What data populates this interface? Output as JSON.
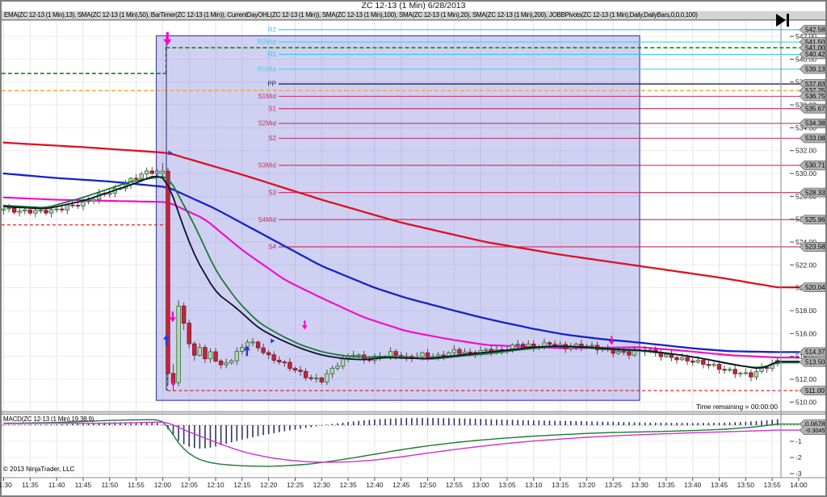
{
  "window": {
    "title": "ZC 12-13 (1 Min)  6/28/2013"
  },
  "toolbar": {
    "indicators_text": "EMA(ZC 12-13 (1 Min),13), SMA(ZC 12-13 (1 Min),50), BarTimer(ZC 12-13 (1 Min)), CurrentDayOHL(ZC 12-13 (1 Min)), SMA(ZC 12-13 (1 Min),100), SMA(ZC 12-13 (1 Min),20), SMA(ZC 12-13 (1 Min),200), JOBBPivots(ZC 12-13 (1 Min),Daily,DailyBars,0,0,0,100)"
  },
  "status": {
    "time_remaining": "Time remaining = 00:00:00",
    "copyright": "© 2013 NinjaTrader, LLC"
  },
  "icons": {
    "top_right": "go-to-end-icon"
  },
  "chart_data": {
    "type": "candlestick",
    "symbol": "ZC 12-13",
    "interval": "1 Min",
    "date": "6/28/2013",
    "grid": true,
    "x_axis": {
      "labels": [
        "11:30",
        "11:35",
        "11:40",
        "11:45",
        "11:50",
        "11:55",
        "12:00",
        "12:05",
        "12:10",
        "12:15",
        "12:20",
        "12:25",
        "12:30",
        "12:35",
        "12:40",
        "12:45",
        "12:50",
        "12:55",
        "13:00",
        "13:05",
        "13:10",
        "13:15",
        "13:20",
        "13:25",
        "13:30",
        "13:35",
        "13:40",
        "13:45",
        "13:50",
        "13:55",
        "14:00"
      ],
      "step_minutes": 5
    },
    "y_axis": {
      "ticks": [
        542,
        540,
        538,
        536,
        534,
        532,
        530,
        528,
        526,
        524,
        522,
        520,
        518,
        516,
        514,
        512,
        510
      ],
      "ylim": [
        509.3,
        543.4
      ]
    },
    "pivots": [
      {
        "name": "R2",
        "value": 542.58,
        "color": "#27c6e8"
      },
      {
        "name": "R2Mid",
        "value": 541.5,
        "color": "#3fd2ee"
      },
      {
        "name": "R1",
        "value": 540.42,
        "color": "#27c6e8"
      },
      {
        "name": "R1Mid",
        "value": 539.13,
        "color": "#3fd2ee"
      },
      {
        "name": "PP",
        "value": 537.83,
        "color": "#23234d"
      },
      {
        "name": "S1Mid",
        "value": 536.75,
        "color": "#cc3060"
      },
      {
        "name": "S1",
        "value": 535.67,
        "color": "#c8295c"
      },
      {
        "name": "S2Mid",
        "value": 534.38,
        "color": "#cc3060"
      },
      {
        "name": "S2",
        "value": 533.08,
        "color": "#c8295c"
      },
      {
        "name": "S3Mid",
        "value": 530.71,
        "color": "#cc3060"
      },
      {
        "name": "S3",
        "value": 528.33,
        "color": "#c8295c"
      },
      {
        "name": "S4Mid",
        "value": 525.96,
        "color": "#cc3060"
      },
      {
        "name": "S4",
        "value": 523.58,
        "color": "#c8295c"
      }
    ],
    "day_lines": [
      {
        "name": "prev-session-high",
        "price": 538.75,
        "t1": -0.4,
        "t2": 30.6,
        "color": "#0a8a0a",
        "width": 1.6,
        "dash": "5,3"
      },
      {
        "name": "current-high",
        "price": 541.0,
        "t1": 30.6,
        "t2": 150.2,
        "color": "#0a8a0a",
        "width": 1.6,
        "dash": "5,3"
      },
      {
        "name": "current-open",
        "price": 537.25,
        "t1": -0.4,
        "t2": 150.2,
        "color": "#efa235",
        "width": 1.4,
        "dash": "5,3"
      },
      {
        "name": "prev-session-low",
        "price": 525.5,
        "t1": -0.4,
        "t2": 30.9,
        "color": "#dd2626",
        "width": 1.3,
        "dash": "4,3"
      },
      {
        "name": "current-low",
        "price": 511.0,
        "t1": 30.9,
        "t2": 150.2,
        "color": "#dd2626",
        "width": 1.3,
        "dash": "4,3"
      }
    ],
    "day_line_connectors": [
      {
        "t": 30.6,
        "p1": 541.0,
        "p2": 538.75,
        "color": "#0a8a0a",
        "dash": "4,3"
      },
      {
        "t": 30.9,
        "p1": 525.5,
        "p2": 511.0,
        "color": "#dd2626",
        "dash": "4,3"
      },
      {
        "t": 30.7,
        "p1": 542.05,
        "p2": 511.0,
        "color": "#3a3a6e",
        "dash": ""
      }
    ],
    "region": {
      "t1": 28.8,
      "t2": 120,
      "p_top": 542.05,
      "p_bottom": 510.15,
      "fill": "rgba(132,132,222,0.38)",
      "stroke": "#4646ad"
    },
    "series": [
      {
        "name": "SMA200",
        "color": "#dd1122",
        "width": 2.3,
        "anchors": [
          [
            0,
            532.7
          ],
          [
            15,
            532.3
          ],
          [
            31,
            531.8
          ],
          [
            45,
            529.9
          ],
          [
            60,
            527.7
          ],
          [
            75,
            525.7
          ],
          [
            91,
            524.0
          ],
          [
            105,
            522.9
          ],
          [
            120,
            521.9
          ],
          [
            135,
            520.9
          ],
          [
            146,
            520.04
          ]
        ]
      },
      {
        "name": "SMA100",
        "color": "#1423cc",
        "width": 2.3,
        "anchors": [
          [
            0,
            530.0
          ],
          [
            10,
            529.6
          ],
          [
            20,
            529.3
          ],
          [
            31,
            528.8
          ],
          [
            40,
            526.9
          ],
          [
            50,
            524.4
          ],
          [
            60,
            521.9
          ],
          [
            70,
            520.0
          ],
          [
            76,
            519.1
          ],
          [
            85,
            518.0
          ],
          [
            91,
            517.3
          ],
          [
            100,
            516.4
          ],
          [
            106,
            515.9
          ],
          [
            113,
            515.5
          ],
          [
            120,
            515.2
          ],
          [
            130,
            514.7
          ],
          [
            137,
            514.45
          ],
          [
            146,
            514.37
          ]
        ]
      },
      {
        "name": "SMA50",
        "color": "#ee11cc",
        "width": 2.2,
        "anchors": [
          [
            0,
            527.9
          ],
          [
            10,
            527.7
          ],
          [
            20,
            527.6
          ],
          [
            31,
            527.5
          ],
          [
            38,
            526.0
          ],
          [
            45,
            523.3
          ],
          [
            53,
            520.7
          ],
          [
            60,
            519.1
          ],
          [
            68,
            517.4
          ],
          [
            76,
            516.2
          ],
          [
            84,
            515.5
          ],
          [
            91,
            515.0
          ],
          [
            98,
            514.85
          ],
          [
            106,
            514.7
          ],
          [
            113,
            514.75
          ],
          [
            120,
            514.8
          ],
          [
            128,
            514.5
          ],
          [
            137,
            514.1
          ],
          [
            146,
            513.9
          ]
        ]
      }
    ],
    "overlay_series": [
      {
        "name": "SMA20",
        "color": "#187a36",
        "width": 1.8,
        "anchors": [
          [
            0,
            527.2
          ],
          [
            8,
            527.0
          ],
          [
            15,
            527.9
          ],
          [
            24,
            529.3
          ],
          [
            31,
            529.8
          ],
          [
            36,
            525.5
          ],
          [
            40,
            521.5
          ],
          [
            44,
            518.9
          ],
          [
            48,
            517.0
          ],
          [
            52,
            515.9
          ],
          [
            56,
            515.0
          ],
          [
            60,
            514.4
          ],
          [
            64,
            514.05
          ],
          [
            68,
            513.9
          ],
          [
            72,
            514.0
          ],
          [
            76,
            513.9
          ],
          [
            80,
            513.75
          ],
          [
            84,
            513.9
          ],
          [
            88,
            514.1
          ],
          [
            92,
            514.25
          ],
          [
            96,
            514.5
          ],
          [
            100,
            514.7
          ],
          [
            104,
            514.85
          ],
          [
            108,
            514.8
          ],
          [
            112,
            514.7
          ],
          [
            116,
            514.55
          ],
          [
            120,
            514.5
          ],
          [
            124,
            514.3
          ],
          [
            128,
            514.1
          ],
          [
            132,
            513.8
          ],
          [
            136,
            513.4
          ],
          [
            140,
            513.1
          ],
          [
            143,
            513.0
          ],
          [
            146,
            513.45
          ]
        ]
      },
      {
        "name": "EMA13",
        "color": "#10102a",
        "width": 1.8,
        "anchors": [
          [
            0,
            527.1
          ],
          [
            8,
            526.9
          ],
          [
            15,
            527.6
          ],
          [
            24,
            529.0
          ],
          [
            29,
            529.9
          ],
          [
            31,
            529.3
          ],
          [
            33,
            526.5
          ],
          [
            36,
            522.8
          ],
          [
            40,
            519.6
          ],
          [
            44,
            518.2
          ],
          [
            48,
            516.5
          ],
          [
            52,
            515.5
          ],
          [
            56,
            514.7
          ],
          [
            60,
            514.1
          ],
          [
            64,
            513.8
          ],
          [
            68,
            513.7
          ],
          [
            72,
            513.9
          ],
          [
            76,
            513.85
          ],
          [
            80,
            513.8
          ],
          [
            84,
            514.0
          ],
          [
            88,
            514.2
          ],
          [
            92,
            514.4
          ],
          [
            96,
            514.6
          ],
          [
            100,
            514.8
          ],
          [
            104,
            514.9
          ],
          [
            108,
            514.85
          ],
          [
            112,
            514.75
          ],
          [
            116,
            514.6
          ],
          [
            120,
            514.55
          ],
          [
            124,
            514.35
          ],
          [
            128,
            514.1
          ],
          [
            132,
            513.8
          ],
          [
            136,
            513.45
          ],
          [
            140,
            513.1
          ],
          [
            143,
            512.9
          ],
          [
            146,
            513.55
          ]
        ]
      }
    ],
    "price_close_anchors": [
      [
        0,
        526.9
      ],
      [
        3,
        526.6
      ],
      [
        6,
        526.7
      ],
      [
        9,
        526.8
      ],
      [
        12,
        527.1
      ],
      [
        15,
        527.3
      ],
      [
        18,
        528.1
      ],
      [
        21,
        528.6
      ],
      [
        24,
        529.4
      ],
      [
        26,
        529.9
      ],
      [
        28,
        530.1
      ],
      [
        30,
        530.2
      ],
      [
        31,
        512.5
      ],
      [
        32,
        511.7
      ],
      [
        33,
        518.4
      ],
      [
        34,
        516.9
      ],
      [
        35,
        515.1
      ],
      [
        36,
        514.1
      ],
      [
        37,
        514.9
      ],
      [
        38,
        513.6
      ],
      [
        39,
        514.3
      ],
      [
        41,
        513.1
      ],
      [
        43,
        513.8
      ],
      [
        45,
        514.9
      ],
      [
        46,
        515.4
      ],
      [
        48,
        514.8
      ],
      [
        50,
        513.9
      ],
      [
        52,
        513.5
      ],
      [
        54,
        513.1
      ],
      [
        56,
        512.6
      ],
      [
        58,
        512.1
      ],
      [
        60,
        511.9
      ],
      [
        62,
        512.8
      ],
      [
        64,
        513.7
      ],
      [
        66,
        514.3
      ],
      [
        68,
        513.8
      ],
      [
        70,
        513.9
      ],
      [
        73,
        514.2
      ],
      [
        76,
        513.8
      ],
      [
        79,
        514.2
      ],
      [
        82,
        514.0
      ],
      [
        85,
        514.4
      ],
      [
        88,
        514.2
      ],
      [
        91,
        514.6
      ],
      [
        94,
        514.5
      ],
      [
        97,
        515.0
      ],
      [
        100,
        514.8
      ],
      [
        103,
        515.2
      ],
      [
        106,
        514.8
      ],
      [
        109,
        514.9
      ],
      [
        112,
        514.7
      ],
      [
        115,
        514.5
      ],
      [
        118,
        514.3
      ],
      [
        121,
        514.5
      ],
      [
        124,
        514.1
      ],
      [
        127,
        513.9
      ],
      [
        130,
        513.6
      ],
      [
        133,
        513.2
      ],
      [
        136,
        512.8
      ],
      [
        139,
        512.6
      ],
      [
        141,
        512.4
      ],
      [
        143,
        512.9
      ],
      [
        145,
        513.2
      ],
      [
        146,
        513.5
      ]
    ],
    "special_bars": {
      "30": [
        530.0,
        530.9,
        529.7,
        530.2
      ],
      "31": [
        530.2,
        530.5,
        511.5,
        512.5
      ],
      "32": [
        512.5,
        513.3,
        511.0,
        511.7
      ],
      "33": [
        511.7,
        518.9,
        511.4,
        518.4
      ],
      "34": [
        518.4,
        518.7,
        516.3,
        516.9
      ],
      "35": [
        516.9,
        517.2,
        514.7,
        515.1
      ],
      "36": [
        515.1,
        515.3,
        513.6,
        514.1
      ]
    },
    "candle_colors": {
      "up_fill": "#b9d3b9",
      "up_stroke": "#2f6f2f",
      "down_fill": "#c0263a",
      "down_stroke": "#7e1426",
      "wick": "#3c3c3c"
    },
    "arrows": [
      {
        "dir": "down",
        "t": 30.9,
        "price": 541.2,
        "size": 9,
        "color": "#ff00cc"
      },
      {
        "dir": "down",
        "t": 31.9,
        "price": 517.0,
        "size": 7,
        "color": "#ff00cc"
      },
      {
        "dir": "up",
        "t": 30.7,
        "price": 515.9,
        "size": 7,
        "color": "#2233ee"
      },
      {
        "dir": "down",
        "t": 32.0,
        "price": 511.35,
        "size": 5,
        "color": "#ff00cc"
      },
      {
        "dir": "up",
        "t": 45.9,
        "price": 514.95,
        "size": 7,
        "color": "#2233ee"
      },
      {
        "dir": "right",
        "t": 50.6,
        "price": 515.35,
        "size": 5,
        "color": "#2233ee"
      },
      {
        "dir": "down",
        "t": 56.8,
        "price": 516.35,
        "size": 6,
        "color": "#ff00cc"
      },
      {
        "dir": "right",
        "t": 31.3,
        "price": 531.8,
        "size": 5,
        "color": "#2233ee"
      },
      {
        "dir": "down",
        "t": 114.7,
        "price": 515.0,
        "size": 6,
        "color": "#ff00cc"
      }
    ],
    "price_axis_boxes": [
      "542.58",
      "541.50",
      "541.00",
      "540.42",
      "539.13",
      "537.83",
      "537.25",
      "536.75",
      "535.67",
      "534.38",
      "533.08",
      "530.71",
      "528.33",
      "525.96",
      "523.58",
      "520.04",
      "514.37",
      "513.50",
      "511.00"
    ],
    "macd": {
      "label": "MACD(ZC 12-13 (1 Min),19,38,9)",
      "ticks": [
        -1,
        -2,
        -3
      ],
      "line_color": "#1d7a33",
      "avg_color": "#cc33cc",
      "hist_color": "#2a3766",
      "value_boxes": [
        "0.0678",
        "-0.3045"
      ],
      "anchors": [
        [
          0,
          0.12,
          0.1
        ],
        [
          10,
          0.16,
          0.12
        ],
        [
          20,
          0.3,
          0.12
        ],
        [
          28,
          0.35,
          0.18
        ],
        [
          30,
          0.3,
          0.2
        ],
        [
          31,
          0.0,
          0.15
        ],
        [
          32,
          -0.7,
          0.02
        ],
        [
          34,
          -1.5,
          -0.28
        ],
        [
          36,
          -2.0,
          -0.55
        ],
        [
          38,
          -2.25,
          -0.8
        ],
        [
          40,
          -2.38,
          -1.05
        ],
        [
          43,
          -2.48,
          -1.42
        ],
        [
          46,
          -2.53,
          -1.72
        ],
        [
          50,
          -2.55,
          -2.0
        ],
        [
          54,
          -2.5,
          -2.18
        ],
        [
          58,
          -2.4,
          -2.28
        ],
        [
          62,
          -2.22,
          -2.3
        ],
        [
          66,
          -2.02,
          -2.26
        ],
        [
          70,
          -1.8,
          -2.16
        ],
        [
          75,
          -1.52,
          -1.96
        ],
        [
          80,
          -1.28,
          -1.73
        ],
        [
          85,
          -1.08,
          -1.51
        ],
        [
          90,
          -0.92,
          -1.31
        ],
        [
          95,
          -0.79,
          -1.13
        ],
        [
          100,
          -0.68,
          -0.98
        ],
        [
          105,
          -0.59,
          -0.86
        ],
        [
          110,
          -0.51,
          -0.75
        ],
        [
          115,
          -0.45,
          -0.66
        ],
        [
          120,
          -0.42,
          -0.59
        ],
        [
          125,
          -0.38,
          -0.53
        ],
        [
          130,
          -0.33,
          -0.47
        ],
        [
          135,
          -0.27,
          -0.42
        ],
        [
          140,
          -0.16,
          -0.37
        ],
        [
          143,
          -0.06,
          -0.34
        ],
        [
          146,
          0.0678,
          -0.3045
        ]
      ]
    }
  }
}
